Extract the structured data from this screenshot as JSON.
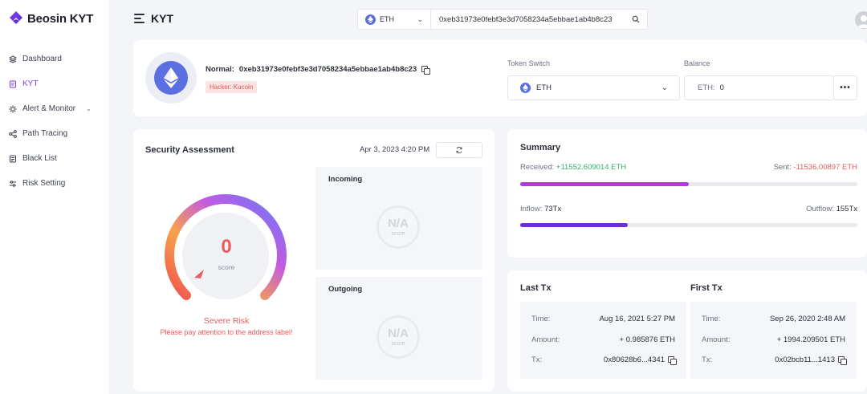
{
  "app": {
    "name": "Beosin KYT"
  },
  "sidebar": {
    "items": [
      {
        "label": "Dashboard",
        "icon": "layers-icon"
      },
      {
        "label": "KYT",
        "icon": "document-icon",
        "active": true
      },
      {
        "label": "Alert & Monitor",
        "icon": "gear-icon",
        "has_submenu": true
      },
      {
        "label": "Path Tracing",
        "icon": "network-icon"
      },
      {
        "label": "Black List",
        "icon": "list-icon"
      },
      {
        "label": "Risk Setting",
        "icon": "sliders-icon"
      }
    ]
  },
  "header": {
    "title": "KYT",
    "chain": "ETH",
    "search_value": "0xeb31973e0febf3e3d7058234a5ebbae1ab4b8c23"
  },
  "address_card": {
    "type_label": "Normal",
    "address": "0xeb31973e0febf3e3d7058234a5ebbae1ab4b8c23",
    "tag": "Hacker: Kucoin",
    "token_switch_label": "Token Switch",
    "token": "ETH",
    "balance_label": "Balance",
    "balance_unit": "ETH:",
    "balance_value": "0",
    "more_label": "•••"
  },
  "security": {
    "title": "Security Assessment",
    "date": "Apr 3, 2023 4:20 PM",
    "score": "0",
    "score_label": "score",
    "risk_level": "Severe Risk",
    "risk_note": "Please pay attention to the address label!",
    "incoming_label": "Incoming",
    "outgoing_label": "Outgoing",
    "na_value": "N/A",
    "na_sub": "score"
  },
  "summary": {
    "title": "Summary",
    "received_label": "Received:",
    "received_value": "+11552.609014 ETH",
    "sent_label": "Sent:",
    "sent_value": "-11536.00897 ETH",
    "received_ratio": 0.5,
    "inflow_label": "Inflow:",
    "inflow_value": "73Tx",
    "outflow_label": "Outflow:",
    "outflow_value": "155Tx",
    "inflow_ratio": 0.32
  },
  "last_tx": {
    "title": "Last Tx",
    "time_label": "Time:",
    "time": "Aug 16, 2021 5:27 PM",
    "amount_label": "Amount:",
    "amount": "+ 0.985876 ETH",
    "tx_label": "Tx:",
    "tx": "0x80628b6...4341"
  },
  "first_tx": {
    "title": "First Tx",
    "time_label": "Time:",
    "time": "Sep 26, 2020 2:48 AM",
    "amount_label": "Amount:",
    "amount": "+ 1994.209501 ETH",
    "tx_label": "Tx:",
    "tx": "0x02bcb11...1413"
  },
  "colors": {
    "accent": "#7b3fe4",
    "danger": "#e85d5d",
    "success": "#33b36b",
    "eth": "#5b6fe0"
  }
}
